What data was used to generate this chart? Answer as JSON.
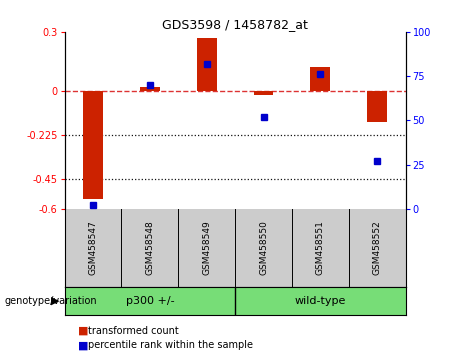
{
  "title": "GDS3598 / 1458782_at",
  "samples": [
    "GSM458547",
    "GSM458548",
    "GSM458549",
    "GSM458550",
    "GSM458551",
    "GSM458552"
  ],
  "red_values": [
    -0.55,
    0.02,
    0.27,
    -0.02,
    0.12,
    -0.16
  ],
  "blue_values": [
    2,
    70,
    82,
    52,
    76,
    27
  ],
  "ylim_left": [
    -0.6,
    0.3
  ],
  "ylim_right": [
    0,
    100
  ],
  "yticks_left": [
    0.3,
    0,
    -0.225,
    -0.45,
    -0.6
  ],
  "yticks_right": [
    100,
    75,
    50,
    25,
    0
  ],
  "hlines_dotted": [
    -0.225,
    -0.45
  ],
  "hline_dashed": 0.0,
  "red_color": "#CC2200",
  "blue_color": "#0000CC",
  "bar_width": 0.35,
  "dashed_line_color": "#DD3333",
  "dotted_line_color": "#111111",
  "legend_red_label": "transformed count",
  "legend_blue_label": "percentile rank within the sample",
  "genotype_label": "genotype/variation",
  "background_plot": "#FFFFFF",
  "background_samples": "#CCCCCC",
  "green_color": "#77DD77",
  "blue_marker_size": 5,
  "group1_label": "p300 +/-",
  "group2_label": "wild-type"
}
